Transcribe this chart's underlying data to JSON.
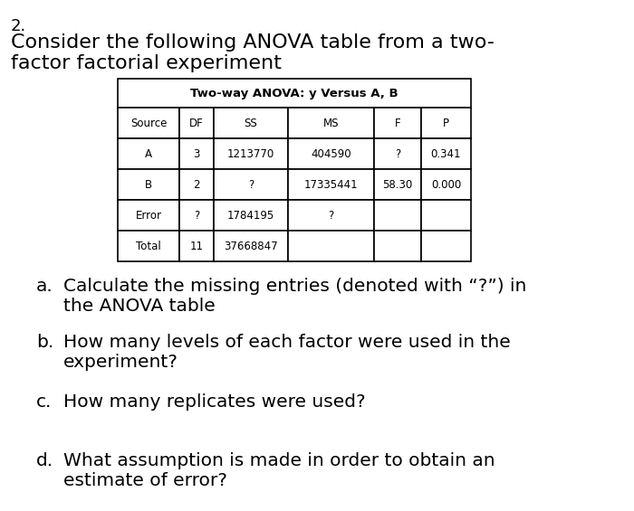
{
  "problem_number": "2.",
  "intro_line1": "Consider the following ANOVA table from a two-",
  "intro_line2": "factor factorial experiment",
  "table_title": "Two-way ANOVA: y Versus A, B",
  "table_headers": [
    "Source",
    "DF",
    "SS",
    "MS",
    "F",
    "P"
  ],
  "table_rows": [
    [
      "A",
      "3",
      "1213770",
      "404590",
      "?",
      "0.341"
    ],
    [
      "B",
      "2",
      "?",
      "17335441",
      "58.30",
      "0.000"
    ],
    [
      "Error",
      "?",
      "1784195",
      "?",
      "",
      ""
    ],
    [
      "Total",
      "11",
      "37668847",
      "",
      "",
      ""
    ]
  ],
  "questions": [
    {
      "label": "a.",
      "line1": "Calculate the missing entries (denoted with “?”) in",
      "line2": "the ANOVA table"
    },
    {
      "label": "b.",
      "line1": "How many levels of each factor were used in the",
      "line2": "experiment?"
    },
    {
      "label": "c.",
      "line1": "How many replicates were used?",
      "line2": ""
    },
    {
      "label": "d.",
      "line1": "What assumption is made in order to obtain an",
      "line2": "estimate of error?"
    }
  ],
  "bg_color": "#ffffff",
  "text_color": "#000000",
  "table_border_color": "#000000",
  "intro_fontsize": 16,
  "problem_fontsize": 13,
  "question_fontsize": 14.5,
  "table_title_fontsize": 9.5,
  "table_content_fontsize": 8.5
}
